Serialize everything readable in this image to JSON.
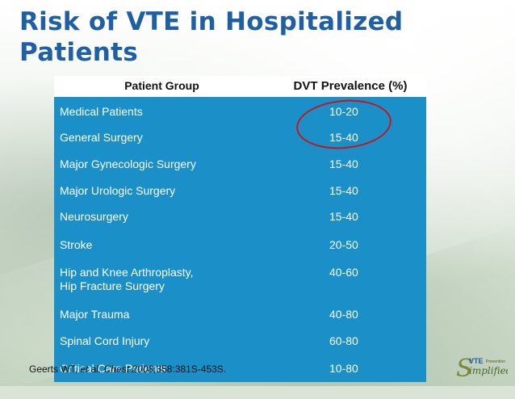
{
  "slide": {
    "title": "Risk of VTE in Hospitalized Patients"
  },
  "table": {
    "headers": [
      "Patient Group",
      "DVT Prevalence (%)"
    ],
    "rows": [
      {
        "group": "Medical Patients",
        "group_line2": "",
        "prevalence": "10-20"
      },
      {
        "group": "General Surgery",
        "group_line2": "",
        "prevalence": "15-40"
      },
      {
        "group": "Major Gynecologic Surgery",
        "group_line2": "",
        "prevalence": "15-40"
      },
      {
        "group": "Major Urologic Surgery",
        "group_line2": "",
        "prevalence": "15-40"
      },
      {
        "group": "Neurosurgery",
        "group_line2": "",
        "prevalence": "15-40"
      },
      {
        "group": "Stroke",
        "group_line2": "",
        "prevalence": "20-50"
      },
      {
        "group": "Hip and Knee Arthroplasty,",
        "group_line2": "Hip Fracture Surgery",
        "prevalence": "40-60"
      },
      {
        "group": "Major Trauma",
        "group_line2": "",
        "prevalence": "40-80"
      },
      {
        "group": "Spinal Cord Injury",
        "group_line2": "",
        "prevalence": "60-80"
      },
      {
        "group": "Critical Care Patients",
        "group_line2": "",
        "prevalence": "10-80"
      }
    ]
  },
  "annotation": {
    "circle_color": "#c4161c"
  },
  "citation": {
    "authors": "Geerts WT, ",
    "et_al": "et al. Chest 2008",
    "rest": ";358:381S-453S."
  },
  "logo": {
    "prefix": "VTE",
    "tag": "Prevention",
    "letter": "S",
    "word": "implified"
  },
  "colors": {
    "title": "#1f5fa4",
    "table_body": "#1a8fc8",
    "header_bg": "#ffffff"
  }
}
